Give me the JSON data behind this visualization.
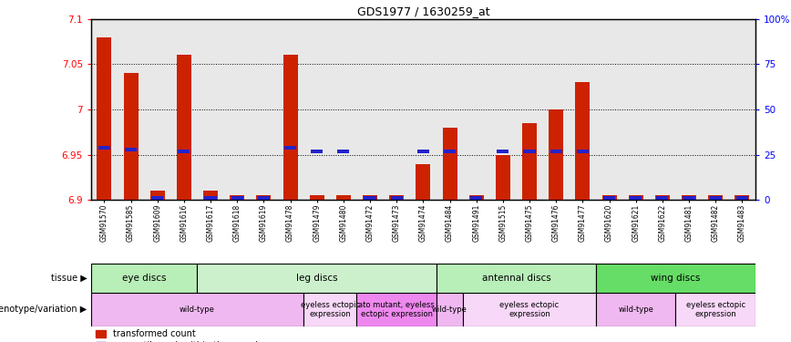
{
  "title": "GDS1977 / 1630259_at",
  "samples": [
    "GSM91570",
    "GSM91585",
    "GSM91609",
    "GSM91616",
    "GSM91617",
    "GSM91618",
    "GSM91619",
    "GSM91478",
    "GSM91479",
    "GSM91480",
    "GSM91472",
    "GSM91473",
    "GSM91474",
    "GSM91484",
    "GSM91491",
    "GSM91515",
    "GSM91475",
    "GSM91476",
    "GSM91477",
    "GSM91620",
    "GSM91621",
    "GSM91622",
    "GSM91481",
    "GSM91482",
    "GSM91483"
  ],
  "red_values": [
    7.08,
    7.04,
    6.91,
    7.06,
    6.91,
    6.905,
    6.905,
    7.06,
    6.905,
    6.905,
    6.905,
    6.905,
    6.94,
    6.98,
    6.905,
    6.95,
    6.985,
    7.0,
    7.03,
    6.905,
    6.905,
    6.905,
    6.905,
    6.905,
    6.905
  ],
  "blue_values": [
    29,
    28,
    1,
    27,
    1,
    1,
    1,
    29,
    27,
    27,
    1,
    1,
    27,
    27,
    1,
    27,
    27,
    27,
    27,
    1,
    1,
    1,
    1,
    1,
    1
  ],
  "ymin": 6.9,
  "ymax": 7.1,
  "yticks": [
    6.9,
    6.95,
    7.0,
    7.05,
    7.1
  ],
  "ytick_labels": [
    "6.9",
    "6.95",
    "7",
    "7.05",
    "7.1"
  ],
  "right_ytick_percents": [
    0,
    25,
    50,
    75,
    100
  ],
  "right_ytick_labels": [
    "0",
    "25",
    "50",
    "75",
    "100%"
  ],
  "tissue_groups": [
    {
      "label": "eye discs",
      "start": 0,
      "end": 3
    },
    {
      "label": "leg discs",
      "start": 4,
      "end": 12
    },
    {
      "label": "antennal discs",
      "start": 13,
      "end": 18
    },
    {
      "label": "wing discs",
      "start": 19,
      "end": 24
    }
  ],
  "tissue_colors": [
    "#b8eeb8",
    "#ccf0cc",
    "#b8eeb8",
    "#66dd66"
  ],
  "genotype_groups": [
    {
      "label": "wild-type",
      "start": 0,
      "end": 7
    },
    {
      "label": "eyeless ectopic\nexpression",
      "start": 8,
      "end": 9
    },
    {
      "label": "ato mutant, eyeless\nectopic expression",
      "start": 10,
      "end": 12
    },
    {
      "label": "wild-type",
      "start": 13,
      "end": 13
    },
    {
      "label": "eyeless ectopic\nexpression",
      "start": 14,
      "end": 18
    },
    {
      "label": "wild-type",
      "start": 19,
      "end": 21
    },
    {
      "label": "eyeless ectopic\nexpression",
      "start": 22,
      "end": 24
    }
  ],
  "genotype_colors": [
    "#f0b8f0",
    "#f8d8f8",
    "#ee88ee",
    "#f0b8f0",
    "#f8d8f8",
    "#f0b8f0",
    "#f8d8f8"
  ],
  "bar_color": "#cc2200",
  "blue_color": "#2222cc",
  "plot_bg": "#e8e8e8"
}
